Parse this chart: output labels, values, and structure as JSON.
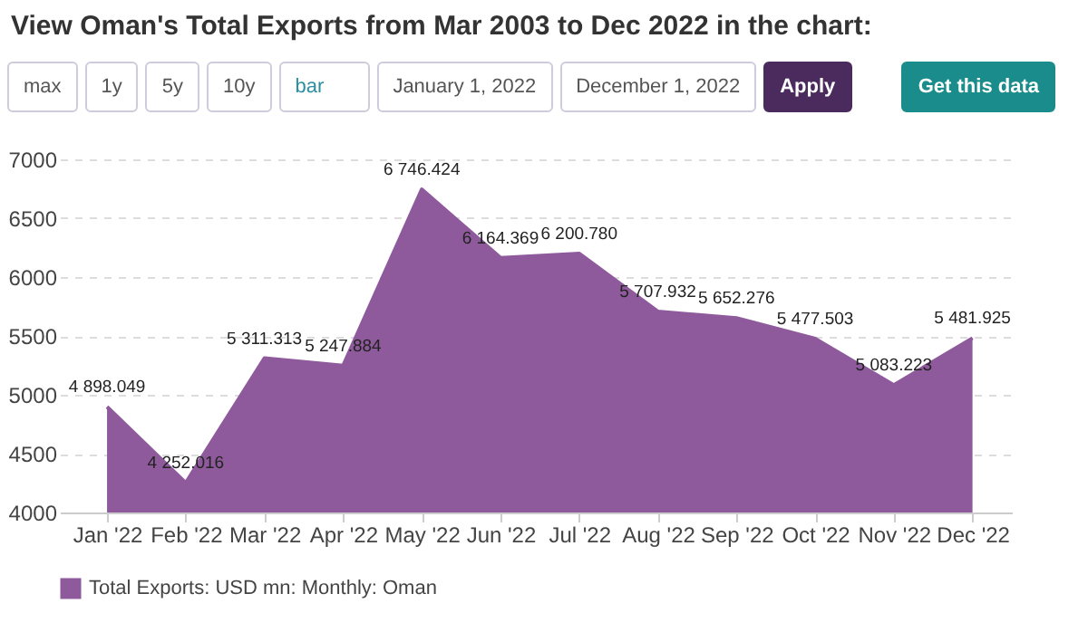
{
  "chart_data": {
    "type": "area",
    "title": "View Oman's Total Exports from Mar 2003 to Dec 2022 in the chart:",
    "annotations": [
      "max",
      "1y",
      "5y",
      "10y",
      "bar",
      "January 1, 2022",
      "December 1, 2022",
      "Apply",
      "Get this data"
    ],
    "categories": [
      "Jan '22",
      "Feb '22",
      "Mar '22",
      "Apr '22",
      "May '22",
      "Jun '22",
      "Jul '22",
      "Aug '22",
      "Sep '22",
      "Oct '22",
      "Nov '22",
      "Dec '22"
    ],
    "series": [
      {
        "name": "Total Exports: USD mn: Monthly: Oman",
        "color": "#8e5a9c",
        "values": [
          4898.049,
          4252.016,
          5311.313,
          5247.884,
          6746.424,
          6164.369,
          6200.78,
          5707.932,
          5652.276,
          5477.503,
          5083.223,
          5481.925
        ],
        "value_labels": [
          "4 898.049",
          "4 252.016",
          "5 311.313",
          "5 247.884",
          "6 746.424",
          "6 164.369",
          "6 200.780",
          "5 707.932",
          "5 652.276",
          "5 477.503",
          "5 083.223",
          "5 481.925"
        ]
      }
    ],
    "ylim": [
      4000,
      7000
    ],
    "yticks": [
      4000,
      4500,
      5000,
      5500,
      6000,
      6500,
      7000
    ],
    "grid": "y",
    "legend": "bottom"
  }
}
